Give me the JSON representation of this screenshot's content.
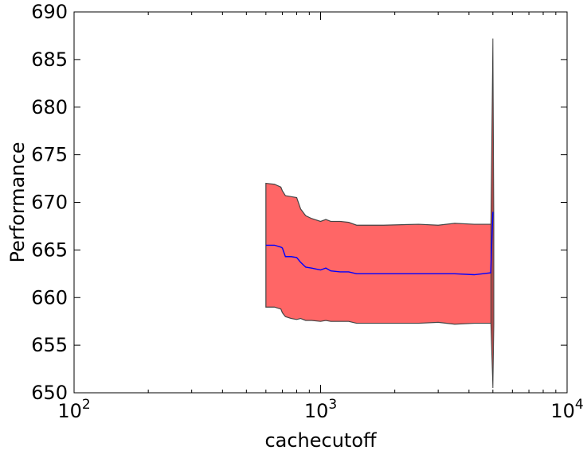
{
  "chart_data": {
    "type": "area",
    "xlabel": "cachecutoff",
    "ylabel": "Performance",
    "xscale": "log",
    "xlim": [
      100,
      10000
    ],
    "ylim": [
      650,
      690
    ],
    "x_ticks": [
      {
        "value": 100,
        "base": "10",
        "exp": "2"
      },
      {
        "value": 1000,
        "base": "10",
        "exp": "3"
      },
      {
        "value": 10000,
        "base": "10",
        "exp": "4"
      }
    ],
    "y_ticks": [
      650,
      655,
      660,
      665,
      670,
      675,
      680,
      685,
      690
    ],
    "grid": false,
    "legend": "none",
    "colors": {
      "band_fill": "#ff6666",
      "band_edge": "#444444",
      "mean_line": "#0000ff"
    },
    "series": [
      {
        "role": "upper",
        "points": [
          [
            600,
            672.0
          ],
          [
            650,
            671.9
          ],
          [
            690,
            671.6
          ],
          [
            700,
            671.2
          ],
          [
            720,
            670.7
          ],
          [
            760,
            670.6
          ],
          [
            800,
            670.5
          ],
          [
            830,
            669.3
          ],
          [
            870,
            668.6
          ],
          [
            920,
            668.3
          ],
          [
            1000,
            668.0
          ],
          [
            1050,
            668.2
          ],
          [
            1100,
            668.0
          ],
          [
            1200,
            668.0
          ],
          [
            1300,
            667.9
          ],
          [
            1400,
            667.6
          ],
          [
            1800,
            667.6
          ],
          [
            2500,
            667.7
          ],
          [
            3000,
            667.6
          ],
          [
            3500,
            667.8
          ],
          [
            4200,
            667.7
          ],
          [
            5000,
            667.7
          ]
        ]
      },
      {
        "role": "mean",
        "points": [
          [
            600,
            665.5
          ],
          [
            650,
            665.5
          ],
          [
            690,
            665.3
          ],
          [
            700,
            665.2
          ],
          [
            720,
            664.3
          ],
          [
            760,
            664.3
          ],
          [
            800,
            664.2
          ],
          [
            830,
            663.7
          ],
          [
            870,
            663.2
          ],
          [
            920,
            663.1
          ],
          [
            1000,
            662.9
          ],
          [
            1050,
            663.1
          ],
          [
            1100,
            662.8
          ],
          [
            1200,
            662.7
          ],
          [
            1300,
            662.7
          ],
          [
            1400,
            662.5
          ],
          [
            1800,
            662.5
          ],
          [
            2500,
            662.5
          ],
          [
            3000,
            662.5
          ],
          [
            3500,
            662.5
          ],
          [
            4200,
            662.4
          ],
          [
            4900,
            662.6
          ],
          [
            5000,
            669.0
          ]
        ]
      },
      {
        "role": "lower",
        "points": [
          [
            600,
            659.0
          ],
          [
            650,
            659.0
          ],
          [
            690,
            658.8
          ],
          [
            700,
            658.4
          ],
          [
            720,
            658.0
          ],
          [
            760,
            657.8
          ],
          [
            800,
            657.7
          ],
          [
            830,
            657.8
          ],
          [
            870,
            657.6
          ],
          [
            920,
            657.6
          ],
          [
            1000,
            657.5
          ],
          [
            1050,
            657.6
          ],
          [
            1100,
            657.5
          ],
          [
            1200,
            657.5
          ],
          [
            1300,
            657.5
          ],
          [
            1400,
            657.3
          ],
          [
            1800,
            657.3
          ],
          [
            2500,
            657.3
          ],
          [
            3000,
            657.4
          ],
          [
            3500,
            657.2
          ],
          [
            4200,
            657.3
          ],
          [
            4900,
            657.3
          ],
          [
            5000,
            657.2
          ]
        ]
      },
      {
        "role": "spike",
        "x": 5000,
        "upper": 687.2,
        "lower": 650.5
      }
    ]
  }
}
